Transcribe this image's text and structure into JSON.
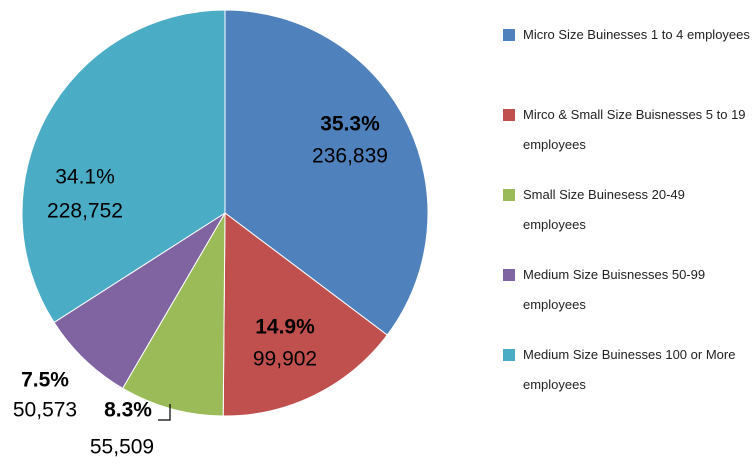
{
  "chart_data": {
    "type": "pie",
    "categories": [
      "Micro Size Buinesses 1 to 4 employees",
      "Mirco & Small Size Buisnesses 5 to 19 employees",
      "Small Size Buinesess  20-49 employees",
      "Medium Size Buisnesses  50-99 employees",
      "Medium Size Buinesses 100 or More employees"
    ],
    "values": [
      236839,
      99902,
      55509,
      50573,
      228752
    ],
    "value_labels": [
      "236,839",
      "99,902",
      "55,509",
      "50,573",
      "228,752"
    ],
    "percents": [
      35.3,
      14.9,
      8.3,
      7.5,
      34.1
    ],
    "percent_labels": [
      "35.3%",
      "14.9%",
      "8.3%",
      "7.5%",
      "34.1%"
    ],
    "colors": [
      "#4f81bd",
      "#c0504d",
      "#9bbb59",
      "#8064a2",
      "#4bacc6"
    ],
    "legend": "right"
  }
}
